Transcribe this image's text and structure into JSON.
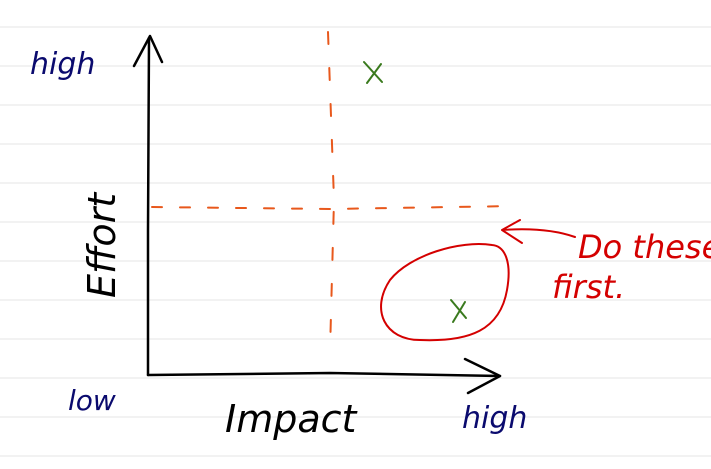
{
  "axes": {
    "y_label": "Effort",
    "x_label": "Impact",
    "y_high": "high",
    "x_high": "high",
    "origin_low": "low"
  },
  "annotation": {
    "line1": "Do these",
    "line2": "first."
  },
  "marks": [
    {
      "quadrant": "high-impact-high-effort",
      "symbol": "x"
    },
    {
      "quadrant": "high-impact-low-effort",
      "symbol": "x",
      "circled": true
    }
  ],
  "colors": {
    "axis": "#000000",
    "labels": "#0a0a6e",
    "divider": "#e8581c",
    "marks": "#3a7a1e",
    "highlight": "#d40000",
    "ruled_lines": "#e6e6e6"
  }
}
